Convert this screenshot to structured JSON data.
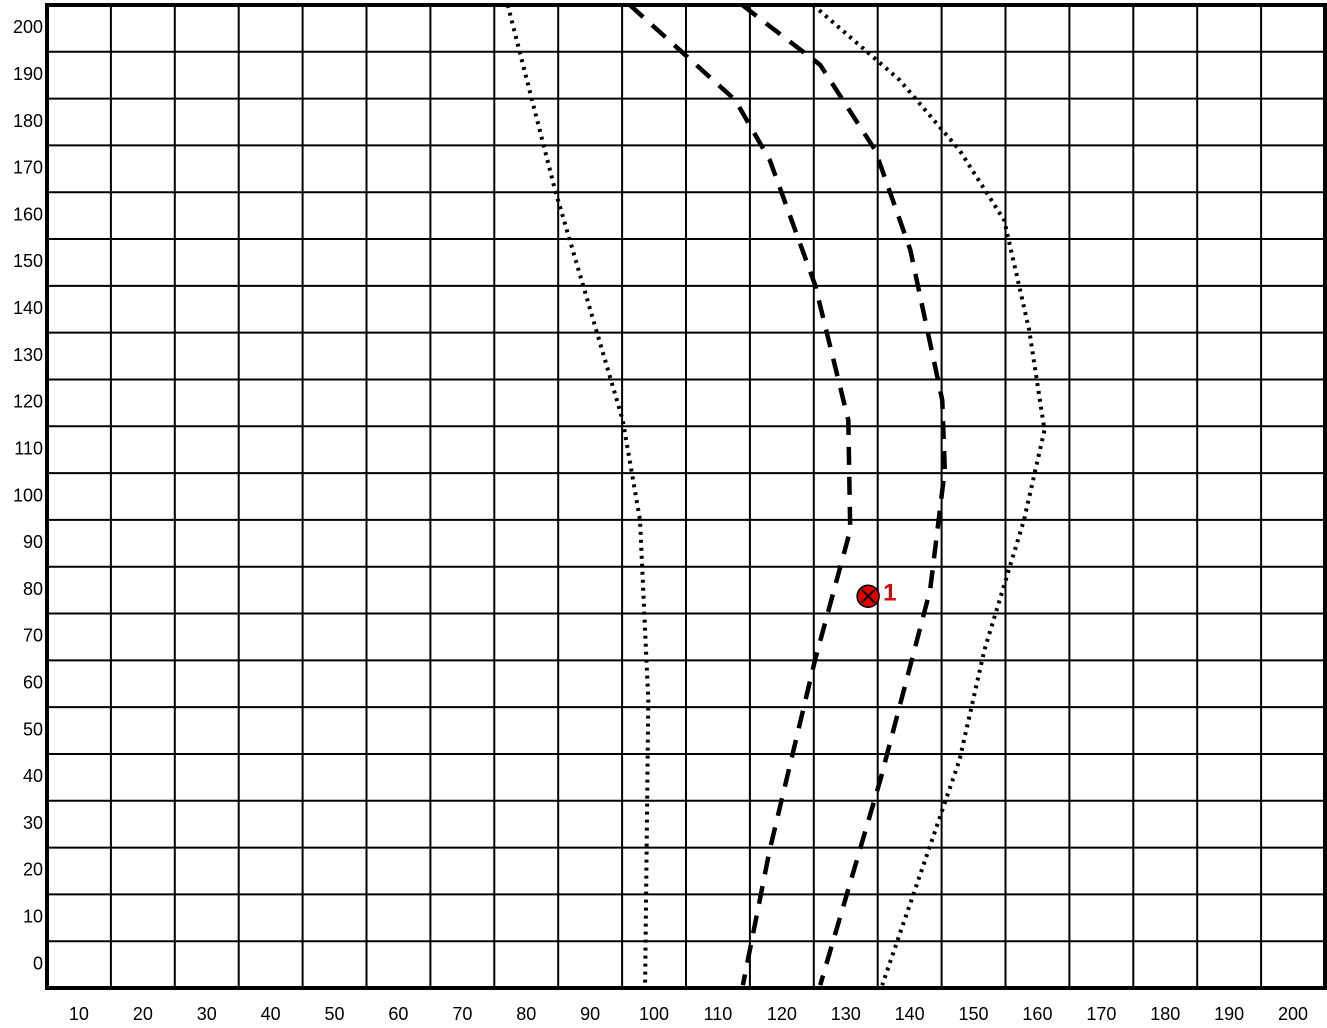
{
  "chart_data": {
    "type": "line",
    "xlim": [
      5,
      205
    ],
    "ylim": [
      -5,
      205
    ],
    "xticks": [
      10,
      20,
      30,
      40,
      50,
      60,
      70,
      80,
      90,
      100,
      110,
      120,
      130,
      140,
      150,
      160,
      170,
      180,
      190,
      200
    ],
    "yticks": [
      0,
      10,
      20,
      30,
      40,
      50,
      60,
      70,
      80,
      90,
      100,
      110,
      120,
      130,
      140,
      150,
      160,
      170,
      180,
      190,
      200
    ],
    "grid": true,
    "series": [
      {
        "color": "#000000",
        "style": "dotted",
        "x": [
          77.1,
          84.5,
          95.1,
          97.8,
          99.1,
          98.6
        ],
        "values": [
          205,
          165.5,
          116.3,
          95,
          56.5,
          -4.4
        ]
      },
      {
        "color": "#000000",
        "style": "dashed",
        "x": [
          96.2,
          112.7,
          118.1,
          125.2,
          130.4,
          130.7,
          125.2,
          118.1,
          113.9
        ],
        "values": [
          205,
          184.7,
          171.9,
          145.2,
          116.3,
          92.8,
          65.1,
          24.5,
          -4.4
        ]
      },
      {
        "color": "#000000",
        "style": "dashed",
        "x": [
          113.8,
          126,
          134.6,
          140.1,
          145.1,
          145.5,
          143.2,
          135.4,
          126
        ],
        "values": [
          205,
          192.2,
          174,
          152.7,
          120.6,
          105.7,
          80,
          39.4,
          -4.4
        ]
      },
      {
        "color": "#000000",
        "style": "dotted",
        "x": [
          124.9,
          138.4,
          147.8,
          154.8,
          158.7,
          161.1,
          157.9,
          151.7,
          147.8,
          135.7
        ],
        "values": [
          205,
          189,
          174,
          159,
          135.6,
          114.2,
          95,
          67.2,
          43.7,
          -4.4
        ]
      }
    ],
    "points": [
      {
        "x": 133.5,
        "y": 78.7,
        "label": "1",
        "color": "#e00000"
      }
    ]
  }
}
